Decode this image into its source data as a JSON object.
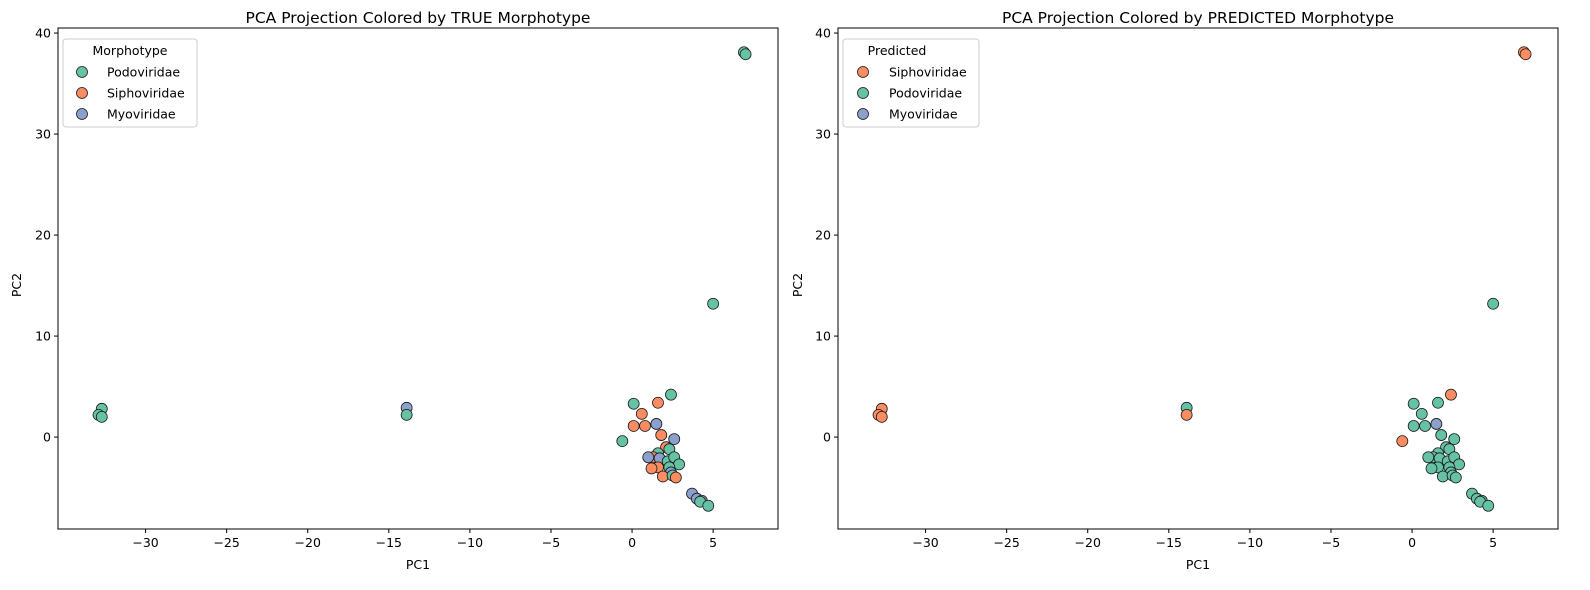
{
  "colors": {
    "Podoviridae": "#66c2a5",
    "Siphoviridae": "#fc8d62",
    "Myoviridae": "#8da0cb",
    "edge": "#1a1a1a"
  },
  "chart_data": [
    {
      "type": "scatter",
      "title": "PCA Projection Colored by TRUE Morphotype",
      "xlabel": "PC1",
      "ylabel": "PC2",
      "xlim": [
        -35.4,
        9.0
      ],
      "ylim": [
        -9.1,
        40.5
      ],
      "xticks": [
        -30,
        -25,
        -20,
        -15,
        -10,
        -5,
        0,
        5
      ],
      "xtick_labels": [
        "−30",
        "−25",
        "−20",
        "−15",
        "−10",
        "−5",
        "0",
        "5"
      ],
      "yticks": [
        0,
        10,
        20,
        30,
        40
      ],
      "ytick_labels": [
        "0",
        "10",
        "20",
        "30",
        "40"
      ],
      "legend": {
        "title": "Morphotype",
        "position": "upper-left",
        "entries": [
          "Podoviridae",
          "Siphoviridae",
          "Myoviridae"
        ]
      },
      "points": [
        {
          "x": 6.9,
          "y": 38.1,
          "c": "Podoviridae"
        },
        {
          "x": 7.0,
          "y": 37.9,
          "c": "Podoviridae"
        },
        {
          "x": 5.0,
          "y": 13.2,
          "c": "Podoviridae"
        },
        {
          "x": -32.7,
          "y": 2.8,
          "c": "Podoviridae"
        },
        {
          "x": -32.9,
          "y": 2.2,
          "c": "Podoviridae"
        },
        {
          "x": -32.7,
          "y": 2.0,
          "c": "Podoviridae"
        },
        {
          "x": -13.9,
          "y": 2.9,
          "c": "Myoviridae"
        },
        {
          "x": -13.9,
          "y": 2.2,
          "c": "Podoviridae"
        },
        {
          "x": 2.4,
          "y": 4.2,
          "c": "Podoviridae"
        },
        {
          "x": 0.1,
          "y": 3.3,
          "c": "Podoviridae"
        },
        {
          "x": 1.6,
          "y": 3.4,
          "c": "Siphoviridae"
        },
        {
          "x": 0.6,
          "y": 2.3,
          "c": "Siphoviridae"
        },
        {
          "x": 0.1,
          "y": 1.1,
          "c": "Siphoviridae"
        },
        {
          "x": 0.8,
          "y": 1.1,
          "c": "Siphoviridae"
        },
        {
          "x": 1.5,
          "y": 1.3,
          "c": "Myoviridae"
        },
        {
          "x": 1.8,
          "y": 0.2,
          "c": "Siphoviridae"
        },
        {
          "x": -0.6,
          "y": -0.4,
          "c": "Podoviridae"
        },
        {
          "x": 2.6,
          "y": -0.2,
          "c": "Myoviridae"
        },
        {
          "x": 2.1,
          "y": -1.0,
          "c": "Siphoviridae"
        },
        {
          "x": 2.3,
          "y": -1.2,
          "c": "Podoviridae"
        },
        {
          "x": 1.6,
          "y": -1.6,
          "c": "Podoviridae"
        },
        {
          "x": 1.3,
          "y": -2.0,
          "c": "Siphoviridae"
        },
        {
          "x": 1.0,
          "y": -2.0,
          "c": "Myoviridae"
        },
        {
          "x": 1.7,
          "y": -2.1,
          "c": "Myoviridae"
        },
        {
          "x": 2.2,
          "y": -2.4,
          "c": "Podoviridae"
        },
        {
          "x": 2.6,
          "y": -2.0,
          "c": "Podoviridae"
        },
        {
          "x": 2.9,
          "y": -2.7,
          "c": "Podoviridae"
        },
        {
          "x": 1.6,
          "y": -3.0,
          "c": "Siphoviridae"
        },
        {
          "x": 1.2,
          "y": -3.1,
          "c": "Siphoviridae"
        },
        {
          "x": 2.3,
          "y": -3.0,
          "c": "Podoviridae"
        },
        {
          "x": 2.4,
          "y": -3.5,
          "c": "Myoviridae"
        },
        {
          "x": 1.9,
          "y": -3.9,
          "c": "Siphoviridae"
        },
        {
          "x": 2.5,
          "y": -3.8,
          "c": "Podoviridae"
        },
        {
          "x": 2.7,
          "y": -4.0,
          "c": "Siphoviridae"
        },
        {
          "x": 3.7,
          "y": -5.6,
          "c": "Myoviridae"
        },
        {
          "x": 4.0,
          "y": -6.1,
          "c": "Myoviridae"
        },
        {
          "x": 4.3,
          "y": -6.3,
          "c": "Myoviridae"
        },
        {
          "x": 4.2,
          "y": -6.4,
          "c": "Podoviridae"
        },
        {
          "x": 4.7,
          "y": -6.8,
          "c": "Podoviridae"
        }
      ]
    },
    {
      "type": "scatter",
      "title": "PCA Projection Colored by PREDICTED Morphotype",
      "xlabel": "PC1",
      "ylabel": "PC2",
      "xlim": [
        -35.4,
        9.0
      ],
      "ylim": [
        -9.1,
        40.5
      ],
      "xticks": [
        -30,
        -25,
        -20,
        -15,
        -10,
        -5,
        0,
        5
      ],
      "xtick_labels": [
        "−30",
        "−25",
        "−20",
        "−15",
        "−10",
        "−5",
        "0",
        "5"
      ],
      "yticks": [
        0,
        10,
        20,
        30,
        40
      ],
      "ytick_labels": [
        "0",
        "10",
        "20",
        "30",
        "40"
      ],
      "legend": {
        "title": "Predicted",
        "position": "upper-left",
        "entries": [
          "Siphoviridae",
          "Podoviridae",
          "Myoviridae"
        ]
      },
      "points": [
        {
          "x": 6.9,
          "y": 38.1,
          "c": "Siphoviridae"
        },
        {
          "x": 7.0,
          "y": 37.9,
          "c": "Siphoviridae"
        },
        {
          "x": 5.0,
          "y": 13.2,
          "c": "Podoviridae"
        },
        {
          "x": -32.7,
          "y": 2.8,
          "c": "Siphoviridae"
        },
        {
          "x": -32.9,
          "y": 2.2,
          "c": "Siphoviridae"
        },
        {
          "x": -32.7,
          "y": 2.0,
          "c": "Siphoviridae"
        },
        {
          "x": -13.9,
          "y": 2.9,
          "c": "Podoviridae"
        },
        {
          "x": -13.9,
          "y": 2.2,
          "c": "Siphoviridae"
        },
        {
          "x": 2.4,
          "y": 4.2,
          "c": "Siphoviridae"
        },
        {
          "x": 0.1,
          "y": 3.3,
          "c": "Podoviridae"
        },
        {
          "x": 1.6,
          "y": 3.4,
          "c": "Podoviridae"
        },
        {
          "x": 0.6,
          "y": 2.3,
          "c": "Podoviridae"
        },
        {
          "x": 0.1,
          "y": 1.1,
          "c": "Podoviridae"
        },
        {
          "x": 0.8,
          "y": 1.1,
          "c": "Podoviridae"
        },
        {
          "x": 1.5,
          "y": 1.3,
          "c": "Myoviridae"
        },
        {
          "x": 1.8,
          "y": 0.2,
          "c": "Podoviridae"
        },
        {
          "x": -0.6,
          "y": -0.4,
          "c": "Siphoviridae"
        },
        {
          "x": 2.6,
          "y": -0.2,
          "c": "Podoviridae"
        },
        {
          "x": 2.1,
          "y": -1.0,
          "c": "Podoviridae"
        },
        {
          "x": 2.3,
          "y": -1.2,
          "c": "Podoviridae"
        },
        {
          "x": 1.6,
          "y": -1.6,
          "c": "Podoviridae"
        },
        {
          "x": 1.3,
          "y": -2.0,
          "c": "Podoviridae"
        },
        {
          "x": 1.0,
          "y": -2.0,
          "c": "Podoviridae"
        },
        {
          "x": 1.7,
          "y": -2.1,
          "c": "Podoviridae"
        },
        {
          "x": 2.2,
          "y": -2.4,
          "c": "Podoviridae"
        },
        {
          "x": 2.6,
          "y": -2.0,
          "c": "Podoviridae"
        },
        {
          "x": 2.9,
          "y": -2.7,
          "c": "Podoviridae"
        },
        {
          "x": 1.6,
          "y": -3.0,
          "c": "Podoviridae"
        },
        {
          "x": 1.2,
          "y": -3.1,
          "c": "Podoviridae"
        },
        {
          "x": 2.3,
          "y": -3.0,
          "c": "Podoviridae"
        },
        {
          "x": 2.4,
          "y": -3.5,
          "c": "Podoviridae"
        },
        {
          "x": 1.9,
          "y": -3.9,
          "c": "Podoviridae"
        },
        {
          "x": 2.5,
          "y": -3.8,
          "c": "Podoviridae"
        },
        {
          "x": 2.7,
          "y": -4.0,
          "c": "Podoviridae"
        },
        {
          "x": 3.7,
          "y": -5.6,
          "c": "Podoviridae"
        },
        {
          "x": 4.0,
          "y": -6.1,
          "c": "Podoviridae"
        },
        {
          "x": 4.3,
          "y": -6.3,
          "c": "Podoviridae"
        },
        {
          "x": 4.2,
          "y": -6.4,
          "c": "Podoviridae"
        },
        {
          "x": 4.7,
          "y": -6.8,
          "c": "Podoviridae"
        }
      ]
    }
  ]
}
